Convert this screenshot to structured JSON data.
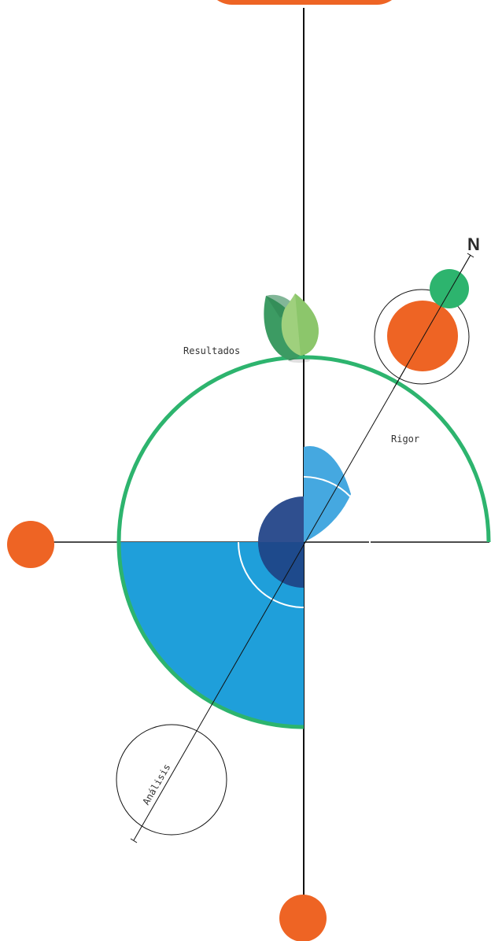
{
  "labels": {
    "results": "Resultados",
    "rigor": "Rigor",
    "analysis": "Análisis",
    "north": "N"
  },
  "colors": {
    "orange": "#EE6424",
    "green": "#2DB46E",
    "light_blue": "#1F9FDA",
    "sky_blue": "#45A8E0",
    "navy": "#2F4F8F",
    "navy_deep": "#1E4A8C",
    "leaf_dark": "#3C9B63",
    "leaf_light": "#9FD07D",
    "line": "#111111"
  }
}
